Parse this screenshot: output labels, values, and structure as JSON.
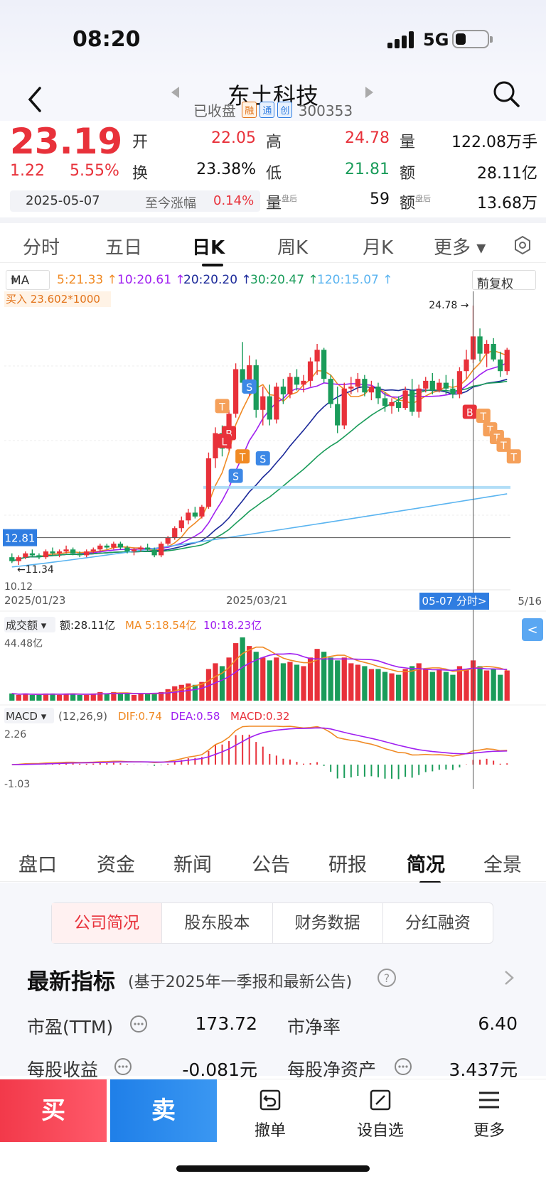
{
  "status": {
    "time": "08:20",
    "network": "5G"
  },
  "header": {
    "stock_name": "东土科技",
    "market_state": "已收盘",
    "tags": [
      "融",
      "通",
      "创"
    ],
    "code": "300353"
  },
  "quote": {
    "price": "23.19",
    "change": "1.22",
    "change_pct": "5.55%",
    "open_label": "开",
    "open": "22.05",
    "high_label": "高",
    "high": "24.78",
    "volume_label": "量",
    "volume": "122.08万手",
    "turnover_label": "换",
    "turnover": "23.38%",
    "low_label": "低",
    "low": "21.81",
    "amount_label": "额",
    "amount": "28.11亿",
    "date": "2025-05-07",
    "since_label": "至今涨幅",
    "since_pct": "0.14%",
    "after_vol_label": "量",
    "after_vol_sup": "盘后",
    "after_vol": "59",
    "after_amt_label": "额",
    "after_amt_sup": "盘后",
    "after_amt": "13.68万"
  },
  "ktabs": [
    "分时",
    "五日",
    "日K",
    "周K",
    "月K",
    "更多 ▾"
  ],
  "ktab_active": "日K",
  "ma_bar": {
    "select": "MA",
    "ma5": "5:21.33 ↑",
    "ma10": "10:20.61 ↑",
    "ma20": "20:20.20 ↑",
    "ma30": "30:20.47 ↑",
    "ma120": "120:15.07 ↑",
    "adjust": "前复权"
  },
  "colors": {
    "up": "#e8313a",
    "down": "#1a9c5a",
    "ma5": "#f08a24",
    "ma10": "#a020f0",
    "ma20": "#1c2a9a",
    "ma30": "#1a9c5a",
    "ma120": "#5ab4f0"
  },
  "chart_data": {
    "type": "candlestick",
    "title": "",
    "ylim": [
      10.12,
      24.78
    ],
    "y_labels": {
      "max_marker": "24.78",
      "left_price": "12.81",
      "min_label": "10.12",
      "min_marker": "11.34"
    },
    "x_labels": [
      "2025/01/23",
      "2025/03/21",
      "05-07 分时>",
      "5/16"
    ],
    "annotation": "买入 23.602*1000",
    "candles": [
      [
        11.8,
        12.0,
        11.5,
        11.6
      ],
      [
        11.6,
        11.9,
        11.4,
        11.8
      ],
      [
        11.8,
        12.1,
        11.7,
        12.0
      ],
      [
        12.0,
        12.2,
        11.8,
        11.9
      ],
      [
        11.9,
        12.0,
        11.7,
        11.8
      ],
      [
        11.8,
        12.2,
        11.7,
        12.1
      ],
      [
        12.1,
        12.3,
        11.9,
        12.0
      ],
      [
        12.0,
        12.2,
        11.8,
        12.1
      ],
      [
        12.1,
        12.4,
        12.0,
        12.2
      ],
      [
        12.2,
        12.3,
        11.9,
        12.0
      ],
      [
        12.0,
        12.1,
        11.8,
        11.9
      ],
      [
        11.9,
        12.2,
        11.8,
        12.1
      ],
      [
        12.1,
        12.3,
        12.0,
        12.2
      ],
      [
        12.2,
        12.5,
        12.1,
        12.4
      ],
      [
        12.4,
        12.5,
        12.2,
        12.3
      ],
      [
        12.3,
        12.6,
        12.2,
        12.5
      ],
      [
        12.5,
        12.6,
        12.2,
        12.3
      ],
      [
        12.3,
        12.4,
        12.0,
        12.1
      ],
      [
        12.1,
        12.3,
        11.9,
        12.2
      ],
      [
        12.2,
        12.4,
        12.1,
        12.3
      ],
      [
        12.3,
        12.5,
        12.1,
        12.2
      ],
      [
        12.2,
        12.3,
        11.8,
        11.9
      ],
      [
        11.9,
        12.6,
        11.8,
        12.5
      ],
      [
        12.5,
        12.9,
        12.4,
        12.8
      ],
      [
        12.8,
        13.4,
        12.7,
        13.3
      ],
      [
        13.3,
        13.9,
        13.1,
        13.7
      ],
      [
        13.7,
        14.3,
        13.5,
        14.1
      ],
      [
        14.1,
        14.4,
        13.8,
        13.9
      ],
      [
        13.9,
        14.5,
        13.8,
        14.4
      ],
      [
        14.4,
        17.2,
        14.3,
        16.9
      ],
      [
        16.9,
        18.5,
        16.4,
        18.2
      ],
      [
        18.2,
        18.6,
        17.0,
        17.4
      ],
      [
        17.4,
        19.4,
        17.3,
        19.2
      ],
      [
        19.2,
        21.8,
        19.0,
        21.5
      ],
      [
        21.5,
        22.9,
        20.3,
        20.8
      ],
      [
        20.8,
        22.2,
        20.1,
        21.7
      ],
      [
        21.7,
        22.0,
        19.0,
        19.4
      ],
      [
        19.4,
        20.6,
        18.6,
        20.1
      ],
      [
        20.1,
        20.7,
        18.6,
        18.9
      ],
      [
        18.9,
        20.8,
        18.7,
        20.6
      ],
      [
        20.6,
        21.0,
        19.7,
        20.2
      ],
      [
        20.2,
        21.3,
        20.0,
        21.1
      ],
      [
        21.1,
        21.5,
        20.4,
        20.7
      ],
      [
        20.7,
        21.2,
        20.3,
        20.9
      ],
      [
        20.9,
        22.1,
        20.6,
        21.9
      ],
      [
        21.9,
        22.8,
        21.2,
        22.5
      ],
      [
        22.5,
        22.6,
        20.8,
        21.0
      ],
      [
        21.0,
        21.2,
        19.5,
        19.7
      ],
      [
        19.7,
        20.6,
        18.2,
        18.6
      ],
      [
        18.6,
        20.8,
        18.4,
        20.5
      ],
      [
        20.5,
        21.1,
        20.2,
        20.6
      ],
      [
        20.6,
        21.3,
        20.3,
        21.0
      ],
      [
        21.0,
        21.2,
        20.1,
        20.3
      ],
      [
        20.3,
        20.9,
        19.9,
        20.6
      ],
      [
        20.6,
        20.8,
        19.7,
        20.0
      ],
      [
        20.0,
        20.3,
        19.3,
        19.6
      ],
      [
        19.6,
        20.0,
        19.2,
        19.8
      ],
      [
        19.8,
        20.1,
        19.3,
        19.5
      ],
      [
        19.5,
        20.6,
        19.4,
        20.4
      ],
      [
        20.4,
        21.0,
        19.1,
        19.3
      ],
      [
        19.3,
        20.7,
        19.0,
        20.5
      ],
      [
        20.5,
        21.1,
        20.3,
        20.9
      ],
      [
        20.9,
        21.3,
        20.2,
        20.4
      ],
      [
        20.4,
        21.0,
        20.3,
        20.8
      ],
      [
        20.8,
        21.2,
        20.2,
        20.5
      ],
      [
        20.5,
        21.0,
        20.0,
        20.2
      ],
      [
        20.2,
        21.6,
        20.0,
        21.4
      ],
      [
        21.4,
        22.5,
        21.0,
        22.0
      ],
      [
        22.0,
        24.78,
        21.81,
        23.19
      ],
      [
        23.19,
        23.6,
        21.9,
        22.3
      ],
      [
        22.3,
        23.0,
        21.6,
        22.8
      ],
      [
        22.8,
        23.1,
        21.9,
        22.0
      ],
      [
        22.0,
        22.4,
        21.1,
        21.4
      ],
      [
        21.4,
        22.6,
        21.2,
        22.5
      ]
    ],
    "volume_panel": {
      "label": "成交额",
      "amount": "额:28.11亿",
      "ma5": "MA 5:18.54亿",
      "ma10": "10:18.23亿",
      "max": "44.48亿"
    },
    "volumes": [
      5,
      4,
      5,
      4,
      4,
      5,
      5,
      4,
      5,
      5,
      4,
      4,
      5,
      6,
      5,
      6,
      5,
      5,
      4,
      5,
      5,
      5,
      6,
      8,
      10,
      11,
      12,
      11,
      13,
      22,
      26,
      24,
      30,
      40,
      44,
      38,
      34,
      30,
      28,
      30,
      26,
      27,
      25,
      24,
      30,
      36,
      34,
      30,
      28,
      30,
      26,
      25,
      24,
      22,
      22,
      20,
      19,
      18,
      22,
      24,
      26,
      22,
      20,
      22,
      20,
      18,
      24,
      22,
      28,
      24,
      21,
      22,
      18,
      21
    ],
    "macd_panel": {
      "label": "MACD",
      "params": "(12,26,9)",
      "dif": "DIF:0.74",
      "dea": "DEA:0.58",
      "macd": "MACD:0.32",
      "max": "2.26",
      "min": "-1.03"
    }
  },
  "info_tabs": [
    "盘口",
    "资金",
    "新闻",
    "公告",
    "研报",
    "简况",
    "全景"
  ],
  "info_tab_active": "简况",
  "segments": [
    "公司简况",
    "股东股本",
    "财务数据",
    "分红融资"
  ],
  "segment_active": "公司简况",
  "metrics": {
    "title": "最新指标",
    "subtitle": "(基于2025年一季报和最新公告)",
    "pe_label": "市盈(TTM)",
    "pe": "173.72",
    "pb_label": "市净率",
    "pb": "6.40",
    "eps_label": "每股收益",
    "eps": "-0.081元",
    "bvps_label": "每股净资产",
    "bvps": "3.437元"
  },
  "bottom": {
    "buy": "买",
    "sell": "卖",
    "cancel": "撤单",
    "watch": "设自选",
    "more": "更多"
  }
}
